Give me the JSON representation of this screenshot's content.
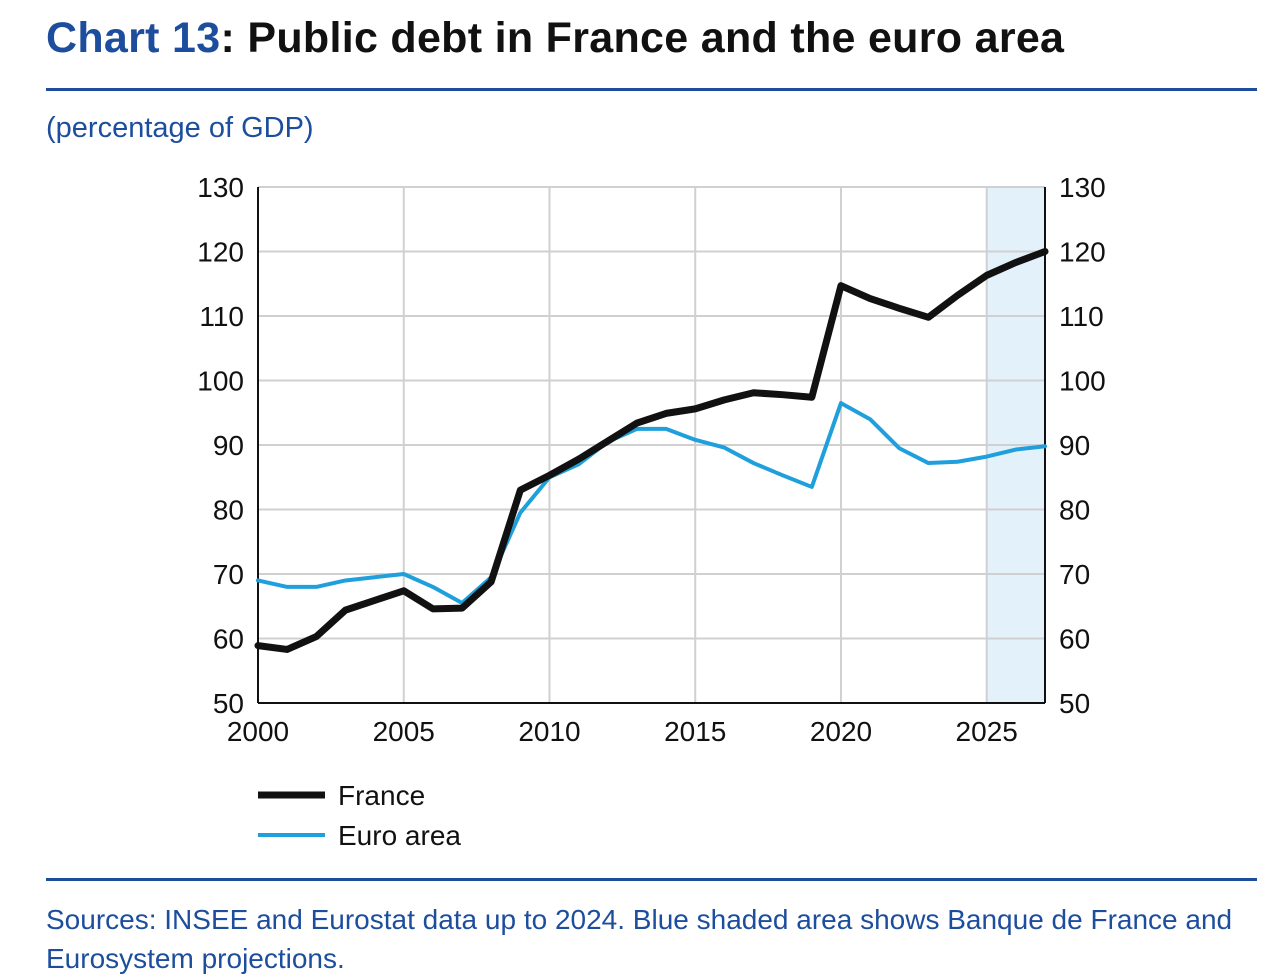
{
  "header": {
    "title_prefix": "Chart 13",
    "title_rest": ": Public debt in France and the euro area"
  },
  "chart_data": {
    "type": "line",
    "title": "Chart 13: Public debt in France and the euro area",
    "subtitle": "(percentage of GDP)",
    "x": [
      2000,
      2001,
      2002,
      2003,
      2004,
      2005,
      2006,
      2007,
      2008,
      2009,
      2010,
      2011,
      2012,
      2013,
      2014,
      2015,
      2016,
      2017,
      2018,
      2019,
      2020,
      2021,
      2022,
      2023,
      2024,
      2025,
      2026,
      2027
    ],
    "series": [
      {
        "name": "France",
        "color": "#111111",
        "values": [
          58.9,
          58.3,
          60.3,
          64.4,
          65.9,
          67.4,
          64.6,
          64.7,
          68.8,
          83.0,
          85.3,
          87.8,
          90.6,
          93.4,
          94.9,
          95.6,
          97.0,
          98.1,
          97.8,
          97.4,
          114.7,
          112.7,
          111.2,
          109.8,
          113.2,
          116.3,
          118.3,
          120.0
        ]
      },
      {
        "name": "Euro area",
        "color": "#1fa0dc",
        "values": [
          69.0,
          68.0,
          68.0,
          69.0,
          69.5,
          70.0,
          68.0,
          65.5,
          69.5,
          79.5,
          85.0,
          87.0,
          90.5,
          92.5,
          92.5,
          90.8,
          89.6,
          87.2,
          85.3,
          83.5,
          96.5,
          94.0,
          89.5,
          87.2,
          87.4,
          88.2,
          89.3,
          89.8
        ]
      }
    ],
    "xlim": [
      2000,
      2027
    ],
    "ylim": [
      50,
      130
    ],
    "x_ticks": [
      "2000",
      "2005",
      "2010",
      "2015",
      "2020",
      "2025"
    ],
    "y_ticks": [
      "50",
      "60",
      "70",
      "80",
      "90",
      "100",
      "110",
      "120",
      "130"
    ],
    "y_axis_sides": "left and right",
    "grid": true,
    "projection_shading": {
      "from": 2025,
      "to": 2027,
      "color": "#e3f1fb"
    },
    "legend_placement": "bottom-left"
  },
  "footer": {
    "sources": "Sources: INSEE and Eurostat data up to 2024. Blue shaded area shows Banque de France and Eurosystem projections."
  }
}
